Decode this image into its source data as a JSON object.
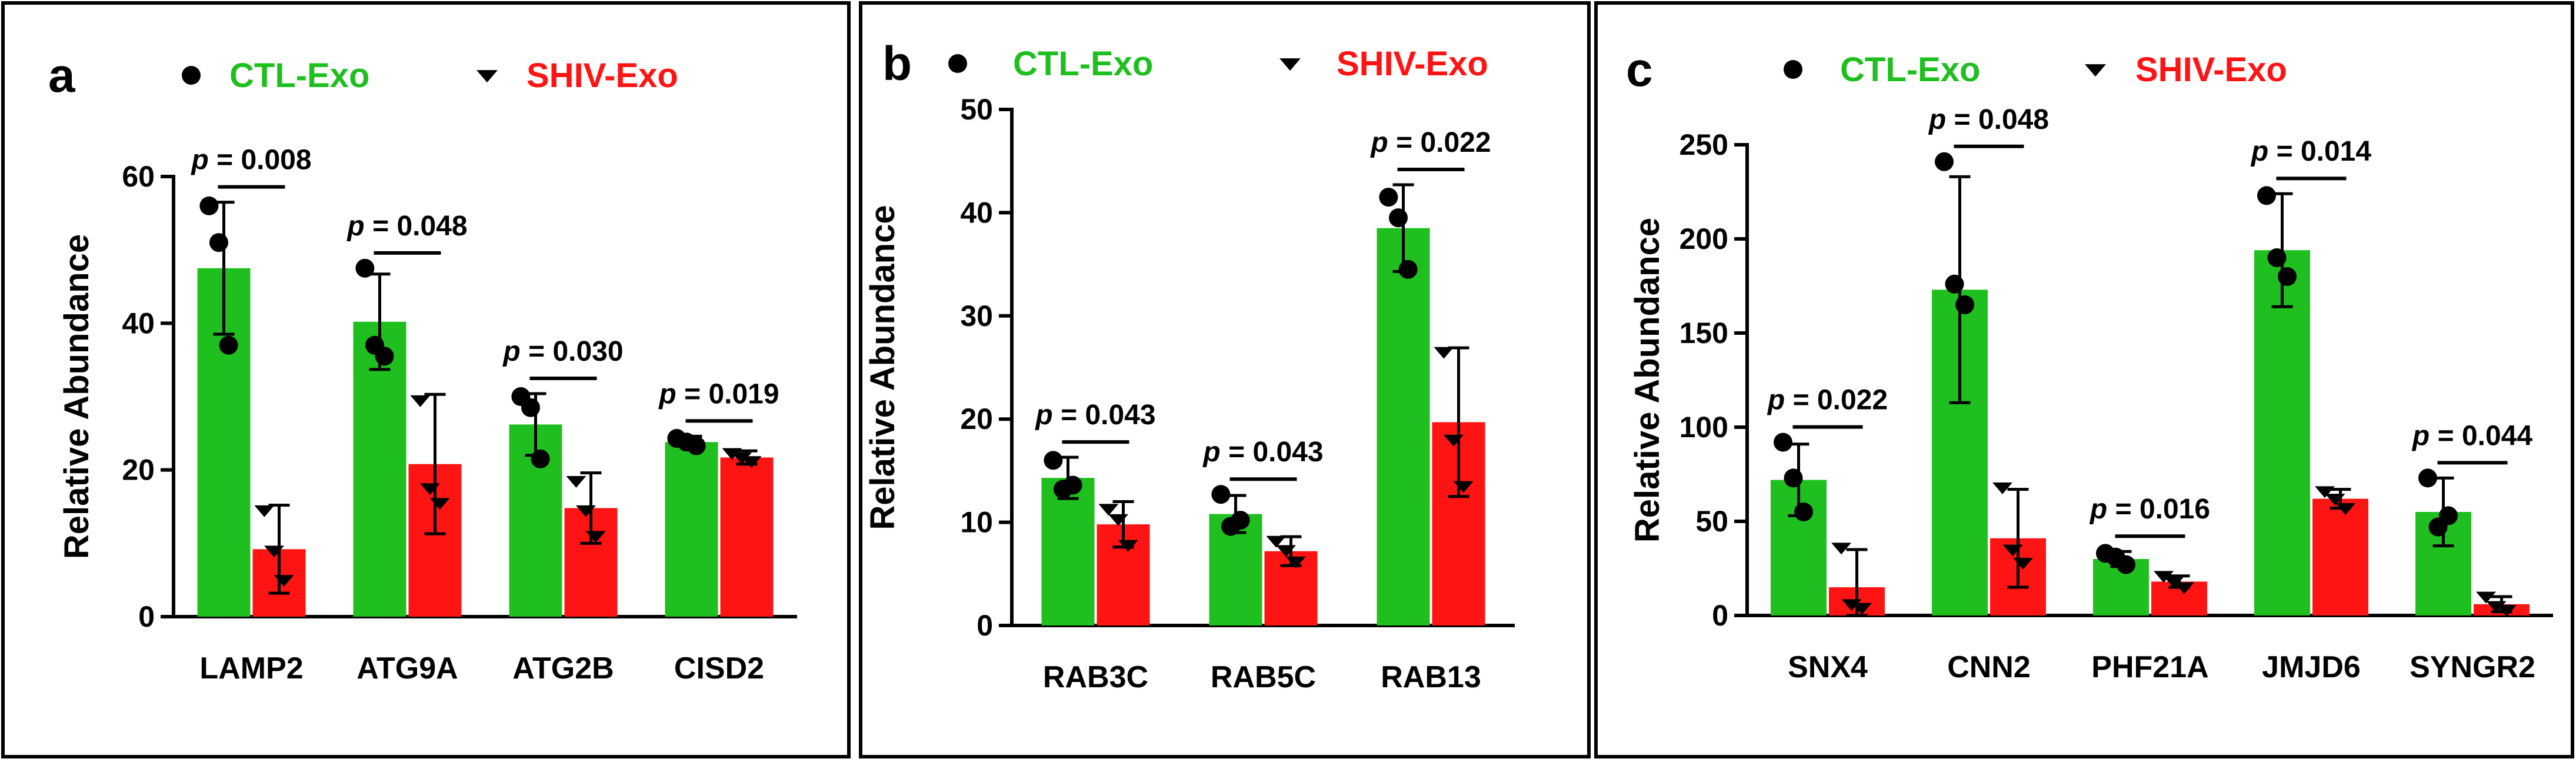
{
  "colors": {
    "ctl": "#1fbf1f",
    "shiv": "#ff1414",
    "axis": "#000000",
    "point": "#000000"
  },
  "legend": {
    "ctl_label": "CTL-Exo",
    "shiv_label": "SHIV-Exo",
    "ctl_marker": "circle",
    "shiv_marker": "triangle-down"
  },
  "chart_data": [
    {
      "panel": "a",
      "type": "bar",
      "ylabel": "Relative Abundance",
      "ylim": [
        0,
        60
      ],
      "yticks": [
        0,
        20,
        40,
        60
      ],
      "series": [
        {
          "name": "CTL-Exo",
          "marker": "circle"
        },
        {
          "name": "SHIV-Exo",
          "marker": "triangle-down"
        }
      ],
      "categories": [
        {
          "label": "LAMP2",
          "p": "0.008",
          "ctl": {
            "mean": 47.5,
            "sd": 9,
            "points": [
              56,
              51,
              37
            ]
          },
          "shiv": {
            "mean": 9.2,
            "sd": 6,
            "points": [
              14.5,
              9,
              5
            ]
          }
        },
        {
          "label": "ATG9A",
          "p": "0.048",
          "ctl": {
            "mean": 40.2,
            "sd": 6.5,
            "points": [
              47.5,
              37,
              35.5
            ]
          },
          "shiv": {
            "mean": 20.8,
            "sd": 9.5,
            "points": [
              29.5,
              17.5,
              15.5
            ]
          }
        },
        {
          "label": "ATG2B",
          "p": "0.030",
          "ctl": {
            "mean": 26.2,
            "sd": 4.2,
            "points": [
              30,
              28.5,
              21.5
            ]
          },
          "shiv": {
            "mean": 14.8,
            "sd": 4.8,
            "points": [
              18.5,
              14.5,
              11
            ]
          }
        },
        {
          "label": "CISD2",
          "p": "0.019",
          "ctl": {
            "mean": 23.8,
            "sd": 0.8,
            "points": [
              24.3,
              23.8,
              23.3
            ]
          },
          "shiv": {
            "mean": 21.7,
            "sd": 0.9,
            "points": [
              22.3,
              21.7,
              21.2
            ]
          }
        }
      ]
    },
    {
      "panel": "b",
      "type": "bar",
      "ylabel": "Relative Abundance",
      "ylim": [
        0,
        50
      ],
      "yticks": [
        0,
        10,
        20,
        30,
        40,
        50
      ],
      "series": [
        {
          "name": "CTL-Exo",
          "marker": "circle"
        },
        {
          "name": "SHIV-Exo",
          "marker": "triangle-down"
        }
      ],
      "categories": [
        {
          "label": "RAB3C",
          "p": "0.043",
          "ctl": {
            "mean": 14.3,
            "sd": 2,
            "points": [
              16,
              13.2,
              13.6
            ]
          },
          "shiv": {
            "mean": 9.8,
            "sd": 2.2,
            "points": [
              11.3,
              10.3,
              7.8
            ]
          }
        },
        {
          "label": "RAB5C",
          "p": "0.043",
          "ctl": {
            "mean": 10.8,
            "sd": 1.8,
            "points": [
              12.7,
              9.6,
              10.2
            ]
          },
          "shiv": {
            "mean": 7.2,
            "sd": 1.4,
            "points": [
              8.2,
              7.3,
              6.2
            ]
          }
        },
        {
          "label": "RAB13",
          "p": "0.022",
          "ctl": {
            "mean": 38.5,
            "sd": 4.2,
            "points": [
              41.5,
              39.5,
              34.5
            ]
          },
          "shiv": {
            "mean": 19.7,
            "sd": 7.2,
            "points": [
              26.5,
              18,
              13.5
            ]
          }
        }
      ]
    },
    {
      "panel": "c",
      "type": "bar",
      "ylabel": "Relative Abundance",
      "ylim": [
        0,
        250
      ],
      "yticks": [
        0,
        50,
        100,
        150,
        200,
        250
      ],
      "series": [
        {
          "name": "CTL-Exo",
          "marker": "circle"
        },
        {
          "name": "SHIV-Exo",
          "marker": "triangle-down"
        }
      ],
      "categories": [
        {
          "label": "SNX4",
          "p": "0.022",
          "ctl": {
            "mean": 72,
            "sd": 19,
            "points": [
              92,
              73,
              55
            ]
          },
          "shiv": {
            "mean": 15,
            "sd": 20,
            "points": [
              36,
              6,
              4
            ]
          }
        },
        {
          "label": "CNN2",
          "p": "0.048",
          "ctl": {
            "mean": 173,
            "sd": 60,
            "points": [
              241,
              176,
              165
            ]
          },
          "shiv": {
            "mean": 41,
            "sd": 26,
            "points": [
              68,
              35,
              28
            ]
          }
        },
        {
          "label": "PHF21A",
          "p": "0.016",
          "ctl": {
            "mean": 30,
            "sd": 4,
            "points": [
              33,
              31,
              27
            ]
          },
          "shiv": {
            "mean": 18,
            "sd": 3,
            "points": [
              21,
              18,
              15
            ]
          }
        },
        {
          "label": "JMJD6",
          "p": "0.014",
          "ctl": {
            "mean": 194,
            "sd": 30,
            "points": [
              223,
              190,
              180
            ]
          },
          "shiv": {
            "mean": 62,
            "sd": 5,
            "points": [
              66,
              62,
              57
            ]
          }
        },
        {
          "label": "SYNGR2",
          "p": "0.044",
          "ctl": {
            "mean": 55,
            "sd": 18,
            "points": [
              73,
              47,
              53
            ]
          },
          "shiv": {
            "mean": 6,
            "sd": 4,
            "points": [
              10,
              5,
              3
            ]
          }
        }
      ]
    }
  ]
}
